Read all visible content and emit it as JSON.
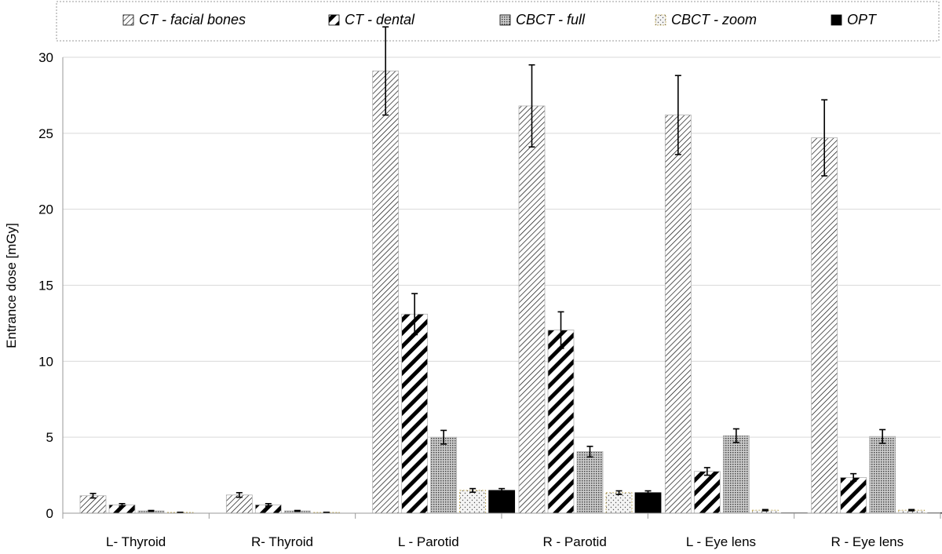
{
  "chart_data": {
    "type": "bar",
    "title": "",
    "xlabel": "",
    "ylabel": "Entrance dose  [mGy]",
    "ylim": [
      0,
      30
    ],
    "yticks": [
      0,
      5,
      10,
      15,
      20,
      25,
      30
    ],
    "grid": true,
    "legend_position": "top",
    "categories": [
      "L- Thyroid",
      "R- Thyroid",
      "L - Parotid",
      "R - Parotid",
      "L - Eye lens",
      "R - Eye lens"
    ],
    "series": [
      {
        "name": "CT - facial bones",
        "pattern": "wide-diagonal-hatch",
        "color": "#000000",
        "values": [
          1.15,
          1.2,
          29.1,
          26.8,
          26.2,
          24.7
        ],
        "errors": [
          0.15,
          0.15,
          2.9,
          2.7,
          2.6,
          2.5
        ]
      },
      {
        "name": "CT - dental",
        "pattern": "bold-diagonal-stripes",
        "color": "#000000",
        "values": [
          0.55,
          0.55,
          13.1,
          12.05,
          2.75,
          2.35
        ],
        "errors": [
          0.08,
          0.08,
          1.35,
          1.2,
          0.25,
          0.25
        ]
      },
      {
        "name": "CBCT - full",
        "pattern": "dense-dots",
        "color": "#8c8c8c",
        "values": [
          0.15,
          0.15,
          5.0,
          4.05,
          5.1,
          5.05
        ],
        "errors": [
          0.03,
          0.03,
          0.45,
          0.35,
          0.45,
          0.45
        ]
      },
      {
        "name": "CBCT - zoom",
        "pattern": "sparse-dots",
        "color": "#b59a3c",
        "values": [
          0.05,
          0.05,
          1.5,
          1.35,
          0.2,
          0.2
        ],
        "errors": [
          0.01,
          0.01,
          0.12,
          0.12,
          0.04,
          0.04
        ]
      },
      {
        "name": "OPT",
        "pattern": "solid",
        "color": "#000000",
        "values": [
          0.0,
          0.0,
          1.5,
          1.35,
          0.02,
          0.02
        ],
        "errors": [
          0.0,
          0.0,
          0.12,
          0.12,
          0.0,
          0.0
        ]
      }
    ]
  }
}
